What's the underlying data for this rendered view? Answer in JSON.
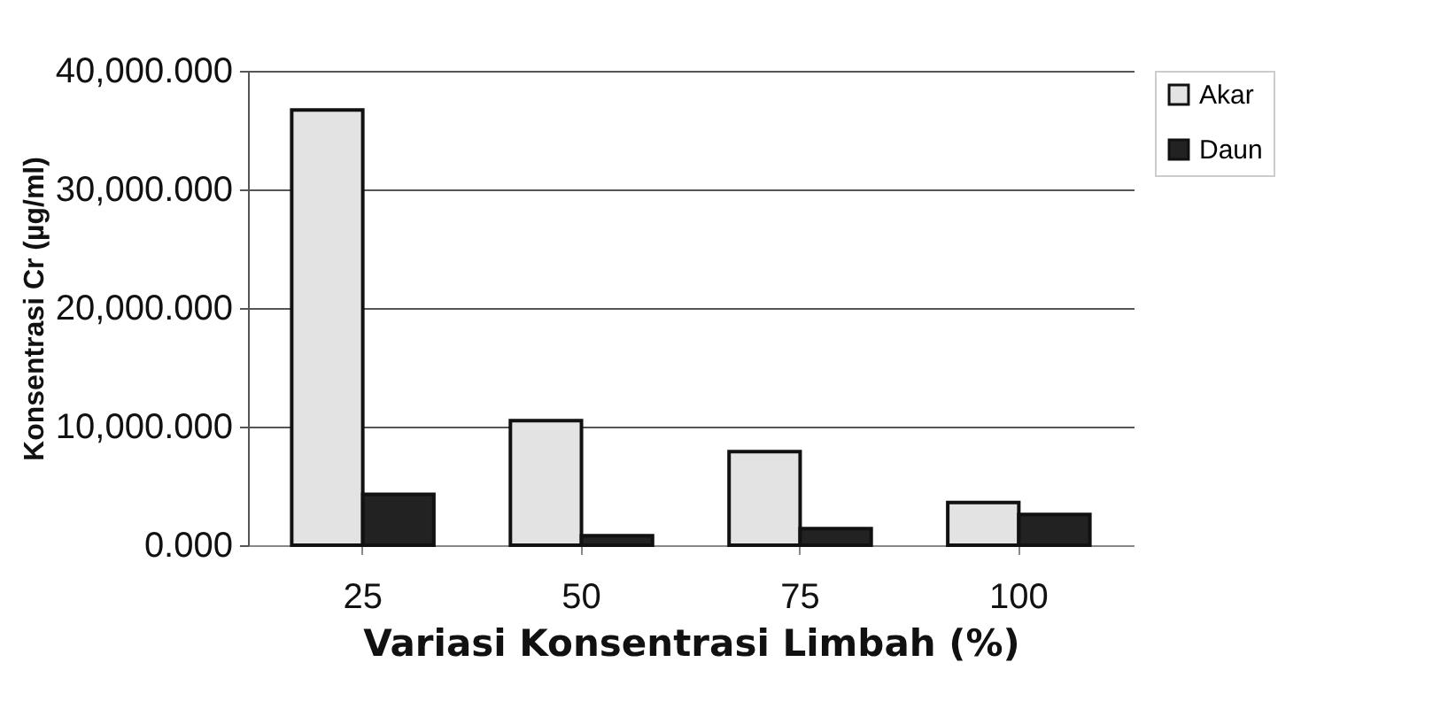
{
  "chart_data": {
    "type": "bar",
    "xlabel": "Variasi Konsentrasi Limbah (%)",
    "ylabel": "Konsentrasi Cr (µg/ml)",
    "categories": [
      "25",
      "50",
      "75",
      "100"
    ],
    "series": [
      {
        "name": "Akar",
        "color": "#e3e3e3",
        "values": [
          36700,
          10500,
          7900,
          3600
        ]
      },
      {
        "name": "Daun",
        "color": "#222222",
        "values": [
          4300,
          800,
          1400,
          2600
        ]
      }
    ],
    "ylim": [
      0,
      40000
    ],
    "yticks": [
      {
        "value": 0,
        "label": "0.000"
      },
      {
        "value": 10000,
        "label": "10,000.000"
      },
      {
        "value": 20000,
        "label": "20,000.000"
      },
      {
        "value": 30000,
        "label": "30,000.000"
      },
      {
        "value": 40000,
        "label": "40,000.000"
      }
    ],
    "grid": "y",
    "legend": "top right"
  }
}
